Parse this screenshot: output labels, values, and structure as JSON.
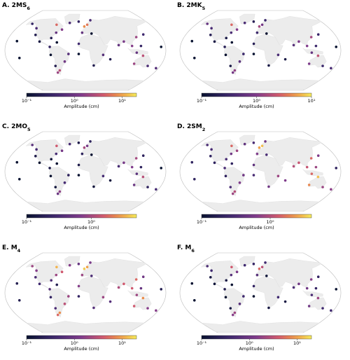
{
  "stations": {
    "lon": [
      -150,
      -128,
      -120,
      -105,
      -80,
      -78,
      -72,
      -72,
      -65,
      -48,
      -38,
      -65,
      -80,
      -72,
      -60,
      -80,
      -45,
      -20,
      -3,
      5,
      15,
      -8,
      15,
      -15,
      20,
      40,
      75,
      88,
      105,
      120,
      140,
      125,
      115,
      130,
      115,
      150,
      174,
      -157,
      -150,
      170,
      57,
      -15
    ],
    "lat": [
      60,
      50,
      35,
      20,
      8,
      -10,
      -35,
      -50,
      -45,
      -25,
      -8,
      18,
      28,
      40,
      47,
      58,
      62,
      65,
      54,
      58,
      68,
      40,
      38,
      15,
      -34,
      -10,
      12,
      20,
      10,
      30,
      36,
      10,
      -5,
      -12,
      -30,
      -35,
      -40,
      21,
      -17,
      8,
      -20,
      -8
    ]
  },
  "panels": [
    {
      "title": "A. 2MS",
      "subscript": "6",
      "colorbar_label": "Amplitude (cm)",
      "clim": [
        0.1,
        20
      ],
      "cticks": [
        {
          "value": 0.1,
          "label": "10⁻¹"
        },
        {
          "value": 1,
          "label": "10⁰"
        },
        {
          "value": 10,
          "label": "10¹"
        }
      ],
      "values": [
        0.3,
        0.5,
        0.2,
        0.15,
        0.3,
        0.1,
        0.2,
        2,
        3,
        1,
        0.6,
        0.1,
        0.2,
        0.8,
        1.5,
        5,
        0.5,
        0.3,
        8,
        6,
        0.5,
        0.8,
        0.1,
        0.4,
        0.2,
        0.6,
        0.8,
        1.2,
        1.5,
        2,
        0.4,
        0.3,
        0.8,
        3,
        2,
        0.5,
        0.6,
        0.1,
        0.1,
        0.1,
        0.2,
        0.1
      ]
    },
    {
      "title": "B. 2MK",
      "subscript": "5",
      "colorbar_label": "Amplitude (cm)",
      "clim": [
        0.1,
        10
      ],
      "cticks": [
        {
          "value": 0.1,
          "label": "10⁻¹"
        },
        {
          "value": 1,
          "label": "10⁰"
        },
        {
          "value": 10,
          "label": "10¹"
        }
      ],
      "values": [
        0.6,
        0.4,
        0.2,
        0.15,
        0.2,
        0.1,
        0.15,
        0.8,
        1.2,
        0.5,
        0.3,
        0.1,
        0.15,
        0.4,
        1,
        3,
        0.4,
        0.2,
        1.5,
        0.8,
        0.3,
        0.3,
        0.1,
        0.2,
        0.15,
        0.4,
        0.5,
        0.9,
        1,
        1.5,
        0.3,
        0.3,
        0.6,
        2,
        0.9,
        0.3,
        0.4,
        0.1,
        0.1,
        0.1,
        0.15,
        0.1
      ]
    },
    {
      "title": "C. 2MO",
      "subscript": "5",
      "colorbar_label": "Amplitude (cm)",
      "clim": [
        0.1,
        5
      ],
      "cticks": [
        {
          "value": 0.1,
          "label": "10⁻¹"
        },
        {
          "value": 1,
          "label": "10⁰"
        }
      ],
      "values": [
        0.4,
        0.3,
        0.15,
        0.1,
        0.15,
        0.1,
        0.12,
        0.5,
        0.8,
        0.3,
        0.2,
        0.1,
        0.12,
        0.3,
        0.6,
        1.5,
        0.3,
        0.15,
        1,
        0.6,
        0.2,
        0.2,
        0.1,
        0.15,
        0.12,
        0.3,
        0.3,
        0.6,
        0.7,
        1,
        0.2,
        0.2,
        0.4,
        1.2,
        0.5,
        0.2,
        0.3,
        0.1,
        0.1,
        0.1,
        0.12,
        0.1
      ]
    },
    {
      "title": "D. 2SM",
      "subscript": "2",
      "colorbar_label": "Amplitude (cm)",
      "clim": [
        0.1,
        4
      ],
      "cticks": [
        {
          "value": 0.1,
          "label": "10⁻¹"
        },
        {
          "value": 1,
          "label": "10⁰"
        }
      ],
      "values": [
        0.3,
        0.3,
        0.2,
        0.2,
        0.3,
        0.2,
        0.3,
        0.8,
        1,
        0.6,
        0.5,
        0.2,
        0.3,
        0.5,
        0.8,
        1.5,
        0.4,
        0.3,
        2.5,
        3,
        0.5,
        0.6,
        0.3,
        0.4,
        0.5,
        0.8,
        1,
        1.2,
        1.2,
        1.5,
        0.6,
        0.8,
        1.5,
        3,
        2,
        0.8,
        0.7,
        0.2,
        0.2,
        0.2,
        0.6,
        0.3
      ]
    },
    {
      "title": "E. M",
      "subscript": "4",
      "colorbar_label": "Amplitude (cm)",
      "clim": [
        0.1,
        20
      ],
      "cticks": [
        {
          "value": 0.1,
          "label": "10⁻¹"
        },
        {
          "value": 1,
          "label": "10⁰"
        },
        {
          "value": 10,
          "label": "10¹"
        }
      ],
      "values": [
        2,
        1.5,
        0.5,
        0.4,
        0.6,
        0.3,
        0.5,
        5,
        8,
        3,
        2,
        0.2,
        0.5,
        2,
        4,
        12,
        1.5,
        0.8,
        15,
        10,
        1.2,
        2,
        0.5,
        1.5,
        0.6,
        2,
        2.5,
        4,
        4,
        5,
        1,
        0.8,
        2,
        8,
        4,
        1.5,
        1.5,
        0.2,
        0.2,
        0.2,
        0.6,
        0.3
      ]
    },
    {
      "title": "F. M",
      "subscript": "6",
      "colorbar_label": "Amplitude (cm)",
      "clim": [
        0.1,
        20
      ],
      "cticks": [
        {
          "value": 0.1,
          "label": "10⁻¹"
        },
        {
          "value": 1,
          "label": "10⁰"
        },
        {
          "value": 10,
          "label": "10¹"
        }
      ],
      "values": [
        0.5,
        0.4,
        0.15,
        0.12,
        0.2,
        0.1,
        0.15,
        1.5,
        2,
        0.6,
        0.4,
        0.1,
        0.15,
        0.6,
        1.2,
        4,
        0.4,
        0.3,
        5,
        3,
        0.4,
        0.6,
        0.12,
        0.3,
        0.15,
        0.4,
        0.5,
        1,
        1,
        1.5,
        0.3,
        0.3,
        0.5,
        2,
        1,
        0.4,
        0.4,
        0.1,
        0.1,
        0.1,
        0.15,
        0.1
      ]
    }
  ]
}
